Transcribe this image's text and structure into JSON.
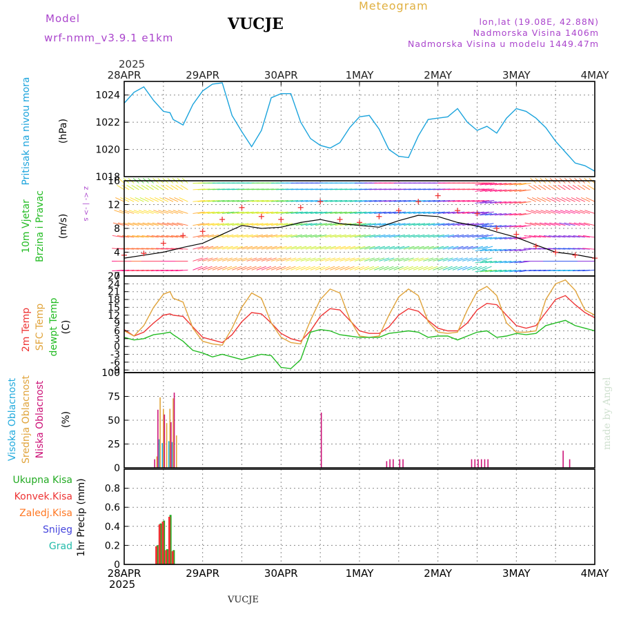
{
  "header": {
    "model_label": "Model",
    "model_name": "wrf-nmm_v3.9.1 e1km",
    "station": "VUCJE",
    "product": "Meteogram",
    "coords": "lon,lat (19.08E, 42.88N)",
    "elevation": "Nadmorska Visina 1406m",
    "model_elevation": "Nadmorska Visina u modelu 1449.47m",
    "year": "2025"
  },
  "footer": {
    "station": "VUCJE",
    "year": "2025",
    "credit": "made by Angel"
  },
  "time_axis": {
    "tick_labels": [
      "28APR",
      "29APR",
      "30APR",
      "1MAY",
      "2MAY",
      "3MAY",
      "4MAY"
    ],
    "start_hour": 0,
    "end_hour": 144
  },
  "colors": {
    "pressure": "#1aa3dc",
    "t2m": "#ee3333",
    "tsfc": "#e0a33a",
    "dewpt": "#22bb22",
    "high_cloud": "#22aadd",
    "mid_cloud": "#e0a33a",
    "low_cloud": "#cc1177",
    "total_precip": "#22aa22",
    "conv_precip": "#ee3333",
    "frozen_precip": "#ff7722",
    "snow": "#4444dd",
    "graupel": "#22bbaa",
    "header_violet": "#aa44cc",
    "header_gold": "#e0b040",
    "wind_speed_line": "#000000",
    "gust": "#ee3333"
  },
  "chart_data": [
    {
      "type": "line",
      "panel": "pressure",
      "ylabel_lines": [
        "Pritisak na nivou mora",
        "(hPa)"
      ],
      "ylim": [
        1018,
        1025
      ],
      "yticks": [
        1018,
        1020,
        1022,
        1024
      ],
      "series": [
        {
          "x": [
            0,
            3,
            6,
            9,
            12,
            14,
            15,
            18,
            21,
            24,
            27,
            30,
            33,
            36,
            39,
            42,
            45,
            48,
            51,
            54,
            57,
            60,
            63,
            66,
            69,
            72,
            75,
            78,
            81,
            84,
            87,
            90,
            93,
            96,
            99,
            102,
            105,
            108,
            111,
            114,
            117,
            120,
            123,
            126,
            129,
            132,
            135,
            138,
            141,
            144
          ],
          "values": [
            1023.4,
            1024.2,
            1024.6,
            1023.6,
            1022.8,
            1022.7,
            1022.2,
            1021.8,
            1023.3,
            1024.3,
            1024.8,
            1024.9,
            1022.5,
            1021.3,
            1020.2,
            1021.4,
            1023.8,
            1024.1,
            1024.1,
            1022.0,
            1020.8,
            1020.3,
            1020.1,
            1020.5,
            1021.6,
            1022.4,
            1022.5,
            1021.5,
            1020.0,
            1019.5,
            1019.4,
            1021.0,
            1022.2,
            1022.3,
            1022.4,
            1023.0,
            1022.0,
            1021.4,
            1021.7,
            1021.2,
            1022.3,
            1023.0,
            1022.8,
            1022.3,
            1021.6,
            1020.6,
            1019.8,
            1019.0,
            1018.8,
            1018.4
          ]
        }
      ]
    },
    {
      "type": "barbs",
      "panel": "wind",
      "ylabel_lines": [
        "10m Vjetar",
        "Brzina i Pravac",
        "(m/s)"
      ],
      "compass": "z <- | -> s",
      "ylim": [
        0,
        16
      ],
      "yticks": [
        0,
        4,
        8,
        12,
        16
      ],
      "speed_series": {
        "x": [
          0,
          6,
          12,
          18,
          24,
          30,
          36,
          42,
          48,
          54,
          60,
          66,
          72,
          78,
          84,
          90,
          96,
          102,
          108,
          114,
          120,
          126,
          132,
          138,
          144
        ],
        "values": [
          3.0,
          3.5,
          4.0,
          4.8,
          5.5,
          7.0,
          8.5,
          8.0,
          8.2,
          9.0,
          9.5,
          8.8,
          8.5,
          8.2,
          9.3,
          10.2,
          10.0,
          9.0,
          8.4,
          7.4,
          6.5,
          5.2,
          4.0,
          3.6,
          3.0
        ]
      },
      "gust_series": {
        "x": [
          0,
          6,
          12,
          18,
          24,
          30,
          36,
          42,
          48,
          54,
          60,
          66,
          72,
          78,
          84,
          90,
          96,
          102,
          108,
          114,
          120,
          126,
          132,
          138,
          144
        ],
        "values": [
          3.5,
          3.8,
          5.5,
          6.8,
          7.5,
          9.5,
          11.5,
          10.0,
          9.5,
          11.5,
          12.5,
          9.5,
          9.0,
          10.0,
          11.0,
          12.5,
          13.5,
          11.0,
          10.5,
          8.0,
          7.0,
          5.0,
          4.0,
          3.5,
          3.0
        ]
      }
    },
    {
      "type": "line",
      "panel": "temperature",
      "ylabel_lines": [
        "2m Temp",
        "SFC Temp",
        "dewpt Temp",
        "(C)"
      ],
      "ylim": [
        -10,
        27
      ],
      "yticks": [
        -9,
        -6,
        -3,
        0,
        3,
        6,
        9,
        12,
        15,
        18,
        21,
        24,
        27
      ],
      "x": [
        0,
        3,
        6,
        9,
        12,
        14,
        15,
        18,
        21,
        24,
        27,
        30,
        33,
        36,
        39,
        42,
        45,
        48,
        51,
        54,
        57,
        60,
        63,
        66,
        69,
        72,
        75,
        78,
        81,
        84,
        87,
        90,
        93,
        96,
        99,
        102,
        105,
        108,
        111,
        114,
        117,
        120,
        123,
        126,
        129,
        132,
        135,
        138,
        141,
        144
      ],
      "series": [
        {
          "name": "2m Temp",
          "values": [
            6.5,
            4.0,
            5.5,
            9.0,
            12.0,
            12.5,
            12.0,
            11.5,
            7.5,
            3.5,
            2.5,
            1.5,
            4.5,
            9.5,
            13.0,
            12.5,
            9.0,
            5.0,
            3.0,
            2.0,
            6.0,
            11.5,
            14.5,
            14.0,
            10.0,
            6.0,
            5.0,
            5.0,
            7.5,
            12.0,
            14.5,
            13.5,
            10.0,
            7.0,
            6.0,
            6.0,
            9.0,
            14.0,
            16.5,
            16.0,
            12.0,
            8.0,
            7.0,
            8.0,
            13.0,
            18.0,
            19.5,
            16.0,
            13.0,
            11.0
          ]
        },
        {
          "name": "SFC Temp",
          "values": [
            6.0,
            4.0,
            8.0,
            15.0,
            20.0,
            21.0,
            18.5,
            17.0,
            7.0,
            2.0,
            1.0,
            0.5,
            7.0,
            15.0,
            20.5,
            18.5,
            9.0,
            3.5,
            1.5,
            1.0,
            10.0,
            18.0,
            22.0,
            20.5,
            10.5,
            4.0,
            3.5,
            4.0,
            12.0,
            19.0,
            22.0,
            19.5,
            9.5,
            5.5,
            5.0,
            5.5,
            14.0,
            21.0,
            23.0,
            19.5,
            9.0,
            5.5,
            5.5,
            6.0,
            18.0,
            24.0,
            25.5,
            21.5,
            14.0,
            12.0
          ]
        },
        {
          "name": "dewpt Temp",
          "values": [
            3.5,
            2.5,
            3.0,
            4.5,
            5.0,
            5.5,
            4.5,
            2.0,
            -1.5,
            -2.5,
            -4.0,
            -3.0,
            -4.0,
            -5.0,
            -4.0,
            -3.0,
            -3.5,
            -8.0,
            -8.5,
            -5.0,
            5.5,
            6.5,
            6.0,
            4.5,
            4.0,
            3.5,
            3.5,
            3.5,
            5.0,
            5.5,
            6.0,
            5.5,
            3.5,
            4.0,
            4.0,
            2.5,
            4.0,
            5.5,
            6.0,
            3.5,
            4.0,
            5.0,
            4.5,
            5.0,
            8.0,
            9.0,
            10.0,
            8.0,
            7.0,
            6.0
          ]
        }
      ]
    },
    {
      "type": "bar",
      "panel": "cloud",
      "ylabel_lines": [
        "Visoka Oblacnost",
        "Srednja Oblacnost",
        "Niska Oblacnost",
        "(%)"
      ],
      "ylim": [
        0,
        100
      ],
      "yticks": [
        0,
        25,
        50,
        75,
        100
      ],
      "series": [
        {
          "name": "Visoka Oblacnost",
          "x": [
            11,
            12,
            14,
            15
          ],
          "values": [
            30,
            26,
            28,
            27
          ]
        },
        {
          "name": "Srednja Oblacnost",
          "x": [
            10,
            11,
            12,
            13,
            14,
            15,
            16
          ],
          "values": [
            12,
            74,
            62,
            47,
            62,
            73,
            34
          ]
        },
        {
          "name": "Niska Oblacnost",
          "x": [
            9,
            10,
            12,
            14,
            15,
            60,
            80,
            81,
            82,
            84,
            85,
            106,
            107,
            108,
            109,
            110,
            111,
            134,
            136
          ],
          "values": [
            9,
            61,
            56,
            48,
            79,
            58,
            7,
            9,
            9,
            9,
            9,
            9,
            9,
            9,
            9,
            9,
            9,
            18,
            9
          ]
        }
      ]
    },
    {
      "type": "bar",
      "panel": "precip",
      "ylabel_lines": [
        "1hr Precip (mm)"
      ],
      "legend": [
        "Ukupna Kisa",
        "Konvek.Kisa",
        "Zaledj.Kisa",
        "Snijeg",
        "Grad"
      ],
      "ylim": [
        0,
        1.0
      ],
      "yticks": [
        0,
        0.2,
        0.4,
        0.6,
        0.8
      ],
      "series": [
        {
          "name": "Ukupna Kisa",
          "x": [
            10,
            11,
            12,
            13,
            14,
            15
          ],
          "values": [
            0.2,
            0.43,
            0.46,
            0.16,
            0.52,
            0.15
          ]
        },
        {
          "name": "Konvek.Kisa",
          "x": [
            10,
            11,
            12,
            13,
            14,
            15
          ],
          "values": [
            0.19,
            0.42,
            0.45,
            0.15,
            0.5,
            0.14
          ]
        }
      ]
    }
  ]
}
